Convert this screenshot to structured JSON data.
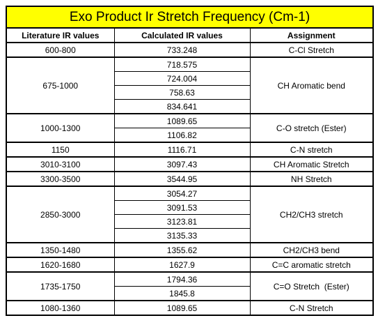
{
  "table": {
    "title": "Exo Product Ir Stretch Frequency (Cm-1)",
    "headers": [
      "Literature IR values",
      "Calculated IR values",
      "Assignment"
    ],
    "groups": [
      {
        "literature": "600-800",
        "values": [
          "733.248"
        ],
        "assignment": "C-Cl Stretch"
      },
      {
        "literature": "675-1000",
        "values": [
          "718.575",
          "724.004",
          "758.63",
          "834.641"
        ],
        "assignment": "CH Aromatic bend"
      },
      {
        "literature": "1000-1300",
        "values": [
          "1089.65",
          "1106.82"
        ],
        "assignment": "C-O stretch (Ester)"
      },
      {
        "literature": "1150",
        "values": [
          "1116.71"
        ],
        "assignment": "C-N stretch"
      },
      {
        "literature": "3010-3100",
        "values": [
          "3097.43"
        ],
        "assignment": "CH Aromatic Stretch"
      },
      {
        "literature": "3300-3500",
        "values": [
          "3544.95"
        ],
        "assignment": "NH Stretch"
      },
      {
        "literature": "2850-3000",
        "values": [
          "3054.27",
          "3091.53",
          "3123.81",
          "3135.33"
        ],
        "assignment": "CH2/CH3 stretch"
      },
      {
        "literature": "1350-1480",
        "values": [
          "1355.62"
        ],
        "assignment": "CH2/CH3 bend"
      },
      {
        "literature": "1620-1680",
        "values": [
          "1627.9"
        ],
        "assignment": "C=C aromatic stretch"
      },
      {
        "literature": "1735-1750",
        "values": [
          "1794.36",
          "1845.8"
        ],
        "assignment": "C=O Stretch  (Ester)"
      },
      {
        "literature": "1080-1360",
        "values": [
          "1089.65"
        ],
        "assignment": "C-N Stretch"
      }
    ]
  }
}
